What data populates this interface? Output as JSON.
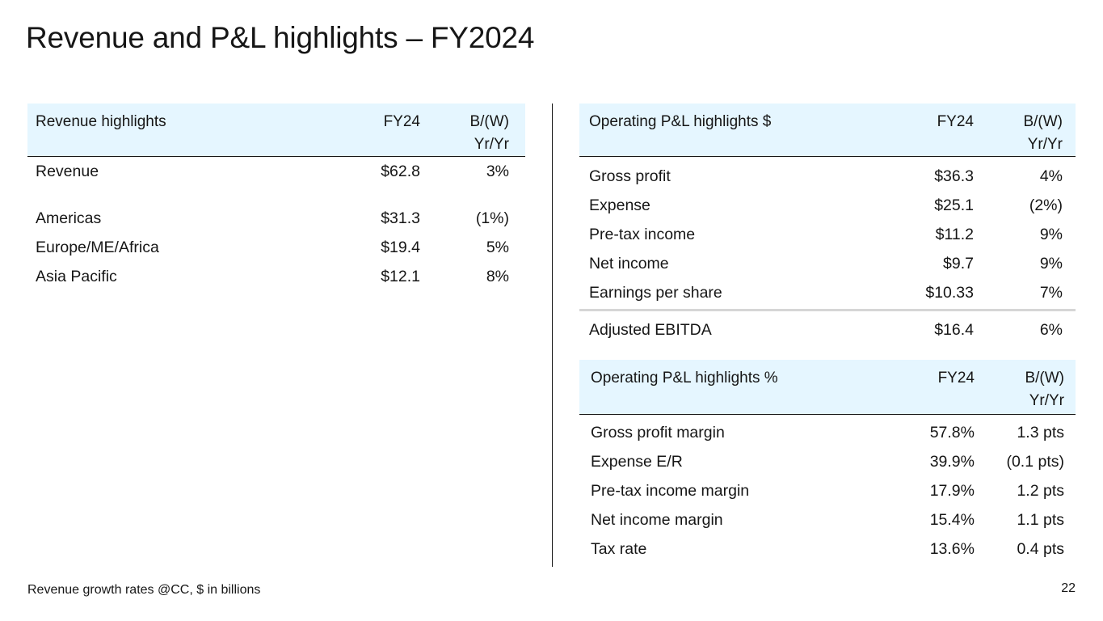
{
  "title": "Revenue and P&L highlights – FY2024",
  "revenue_table": {
    "header": {
      "label": "Revenue highlights",
      "fy": "FY24",
      "bw_line1": "B/(W)",
      "bw_line2": "Yr/Yr"
    },
    "total": {
      "label": "Revenue",
      "fy": "$62.8",
      "bw": "3%"
    },
    "rows": [
      {
        "label": "Americas",
        "fy": "$31.3",
        "bw": "(1%)"
      },
      {
        "label": "Europe/ME/Africa",
        "fy": "$19.4",
        "bw": "5%"
      },
      {
        "label": "Asia Pacific",
        "fy": "$12.1",
        "bw": "8%"
      }
    ]
  },
  "pl_dollar_table": {
    "header": {
      "label": "Operating P&L highlights $",
      "fy": "FY24",
      "bw_line1": "B/(W)",
      "bw_line2": "Yr/Yr"
    },
    "rows": [
      {
        "label": "Gross profit",
        "fy": "$36.3",
        "bw": "4%"
      },
      {
        "label": "Expense",
        "fy": "$25.1",
        "bw": "(2%)"
      },
      {
        "label": "Pre-tax income",
        "fy": "$11.2",
        "bw": "9%"
      },
      {
        "label": "Net income",
        "fy": "$9.7",
        "bw": "9%"
      },
      {
        "label": "Earnings per share",
        "fy": "$10.33",
        "bw": "7%"
      }
    ],
    "ebitda": {
      "label": "Adjusted EBITDA",
      "fy": "$16.4",
      "bw": "6%"
    }
  },
  "pl_percent_table": {
    "header": {
      "label": "Operating P&L highlights %",
      "fy": "FY24",
      "bw_line1": "B/(W)",
      "bw_line2": "Yr/Yr"
    },
    "rows": [
      {
        "label": "Gross profit margin",
        "fy": "57.8%",
        "bw": "1.3 pts"
      },
      {
        "label": "Expense E/R",
        "fy": "39.9%",
        "bw": "(0.1 pts)"
      },
      {
        "label": "Pre-tax income margin",
        "fy": "17.9%",
        "bw": "1.2 pts"
      },
      {
        "label": "Net income margin",
        "fy": "15.4%",
        "bw": "1.1 pts"
      },
      {
        "label": "Tax rate",
        "fy": "13.6%",
        "bw": "0.4 pts"
      }
    ]
  },
  "footnote": "Revenue growth rates @CC, $ in billions",
  "page_number": "22",
  "colors": {
    "header_bg": "#e5f6ff",
    "text": "#161616",
    "rule": "#161616",
    "separator": "#d6d6d6"
  }
}
